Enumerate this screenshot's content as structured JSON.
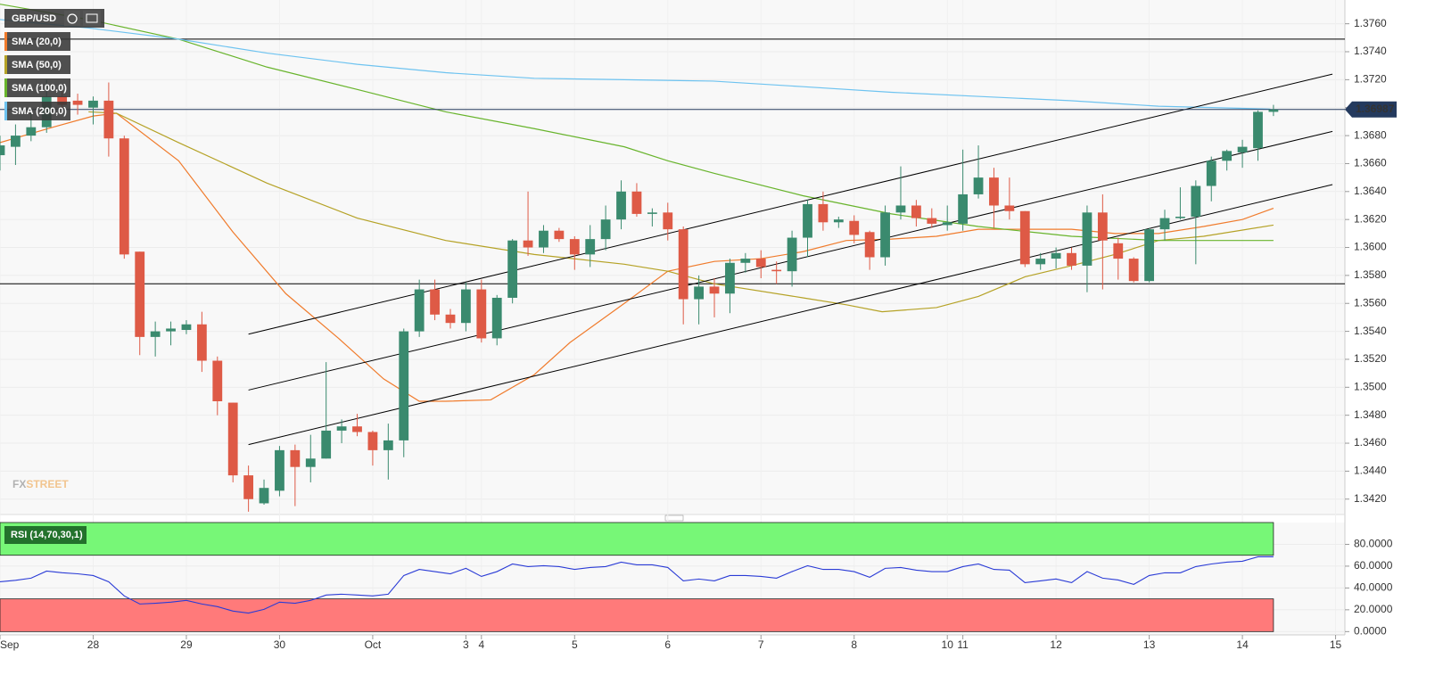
{
  "chart_data": [
    {
      "type": "candlestick",
      "series": [
        {
          "name": "GBP/USD",
          "up_color": "#3a8a6e",
          "down_color": "#de5a46",
          "x": [
            0,
            1,
            2,
            3,
            4,
            5,
            6,
            7,
            8,
            9,
            10,
            11,
            12,
            13,
            14,
            15,
            16,
            17,
            18,
            19,
            20,
            21,
            22,
            23,
            24,
            25,
            26,
            27,
            28,
            29,
            30,
            31,
            32,
            33,
            34,
            35,
            36,
            37,
            38,
            39,
            40,
            41,
            42,
            43,
            44,
            45,
            46,
            47,
            48,
            49,
            50,
            51,
            52,
            53,
            54,
            55,
            56,
            57,
            58,
            59,
            60,
            61,
            62,
            63,
            64,
            65,
            66,
            67,
            68,
            69,
            70,
            71,
            72,
            73,
            74,
            75,
            76,
            77,
            78,
            79,
            80,
            81,
            82
          ],
          "open": [
            1.3666,
            1.3672,
            1.368,
            1.3686,
            1.3708,
            1.3705,
            1.37,
            1.3705,
            1.3678,
            1.3597,
            1.3536,
            1.354,
            1.3541,
            1.3545,
            1.3519,
            1.3489,
            1.3437,
            1.3417,
            1.3426,
            1.3455,
            1.3443,
            1.3449,
            1.3469,
            1.3472,
            1.3468,
            1.3455,
            1.3462,
            1.354,
            1.357,
            1.3552,
            1.3546,
            1.357,
            1.3535,
            1.3564,
            1.3605,
            1.36,
            1.3612,
            1.3606,
            1.3595,
            1.3606,
            1.362,
            1.364,
            1.3624,
            1.3625,
            1.3613,
            1.3563,
            1.3572,
            1.3567,
            1.3589,
            1.3592,
            1.3584,
            1.3583,
            1.3607,
            1.3631,
            1.3618,
            1.3619,
            1.3611,
            1.3593,
            1.3625,
            1.363,
            1.3621,
            1.3616,
            1.3617,
            1.3638,
            1.365,
            1.363,
            1.3626,
            1.3588,
            1.3592,
            1.3596,
            1.3587,
            1.3625,
            1.3603,
            1.3592,
            1.3576,
            1.3613,
            1.3621,
            1.3622,
            1.3644,
            1.3662,
            1.3668,
            1.3671,
            1.3697
          ],
          "high": [
            1.368,
            1.3688,
            1.37,
            1.372,
            1.3712,
            1.371,
            1.3708,
            1.3718,
            1.368,
            1.3597,
            1.3547,
            1.3547,
            1.3548,
            1.3554,
            1.3522,
            1.3489,
            1.3444,
            1.3434,
            1.3458,
            1.3459,
            1.3466,
            1.3518,
            1.3477,
            1.3481,
            1.3469,
            1.3474,
            1.3542,
            1.3577,
            1.3577,
            1.3556,
            1.3575,
            1.3577,
            1.3566,
            1.3606,
            1.364,
            1.3616,
            1.3614,
            1.3608,
            1.3616,
            1.363,
            1.3648,
            1.3646,
            1.3628,
            1.3632,
            1.3615,
            1.358,
            1.3578,
            1.3592,
            1.3596,
            1.3598,
            1.359,
            1.3612,
            1.3634,
            1.364,
            1.3622,
            1.3623,
            1.3612,
            1.363,
            1.3658,
            1.3634,
            1.3628,
            1.363,
            1.367,
            1.3673,
            1.3657,
            1.365,
            1.3626,
            1.3596,
            1.36,
            1.36,
            1.363,
            1.3638,
            1.3607,
            1.3593,
            1.3614,
            1.3627,
            1.3643,
            1.3648,
            1.3665,
            1.367,
            1.3677,
            1.3698,
            1.3702
          ],
          "low": [
            1.3655,
            1.3659,
            1.3676,
            1.3682,
            1.3698,
            1.3695,
            1.3688,
            1.3665,
            1.3592,
            1.3523,
            1.3522,
            1.353,
            1.3538,
            1.3511,
            1.348,
            1.3432,
            1.3411,
            1.3416,
            1.3422,
            1.3415,
            1.3432,
            1.3449,
            1.346,
            1.3465,
            1.3444,
            1.3434,
            1.345,
            1.3536,
            1.3548,
            1.3542,
            1.354,
            1.3532,
            1.353,
            1.356,
            1.3594,
            1.3596,
            1.3604,
            1.3584,
            1.3586,
            1.3598,
            1.3613,
            1.3622,
            1.3615,
            1.3605,
            1.3545,
            1.3545,
            1.355,
            1.3553,
            1.3582,
            1.3578,
            1.3574,
            1.3572,
            1.3593,
            1.3612,
            1.3614,
            1.3603,
            1.3584,
            1.3587,
            1.362,
            1.3615,
            1.3614,
            1.3612,
            1.3612,
            1.3635,
            1.3614,
            1.362,
            1.3586,
            1.3584,
            1.3585,
            1.3584,
            1.3568,
            1.357,
            1.3577,
            1.3575,
            1.3575,
            1.3605,
            1.362,
            1.3588,
            1.3633,
            1.3655,
            1.3657,
            1.3662,
            1.3694
          ],
          "close": [
            1.3673,
            1.368,
            1.3686,
            1.3708,
            1.3702,
            1.3702,
            1.3705,
            1.3678,
            1.3595,
            1.3536,
            1.354,
            1.3542,
            1.3545,
            1.3519,
            1.349,
            1.3437,
            1.342,
            1.3428,
            1.3455,
            1.3443,
            1.3449,
            1.3469,
            1.3472,
            1.3468,
            1.3455,
            1.3462,
            1.354,
            1.357,
            1.3552,
            1.3546,
            1.357,
            1.3535,
            1.3564,
            1.3605,
            1.36,
            1.3612,
            1.3606,
            1.3595,
            1.3606,
            1.362,
            1.364,
            1.3624,
            1.3625,
            1.3613,
            1.3563,
            1.3572,
            1.3567,
            1.3589,
            1.3592,
            1.3586,
            1.3583,
            1.3607,
            1.3631,
            1.3618,
            1.362,
            1.3609,
            1.3593,
            1.3625,
            1.363,
            1.3621,
            1.3617,
            1.3618,
            1.3638,
            1.365,
            1.363,
            1.3626,
            1.3588,
            1.3592,
            1.3596,
            1.3587,
            1.3625,
            1.3605,
            1.3592,
            1.3576,
            1.3613,
            1.3621,
            1.3622,
            1.3644,
            1.3662,
            1.3669,
            1.3672,
            1.3697,
            1.36987
          ]
        }
      ],
      "overlays": [
        {
          "name": "SMA (20,0)",
          "color": "#f07b2c",
          "x": [
            0,
            3.4,
            6,
            7.5,
            11.5,
            15,
            18.4,
            21.8,
            24.7,
            27,
            28.7,
            31.6,
            34.4,
            36.7,
            40.2,
            43,
            46,
            49,
            51.7,
            54.5,
            57.4,
            60.3,
            63,
            66,
            69,
            71.8,
            74.6,
            77.5,
            80,
            82
          ],
          "values": [
            1.3675,
            1.3686,
            1.3694,
            1.3696,
            1.3662,
            1.3611,
            1.3567,
            1.3535,
            1.3506,
            1.349,
            1.349,
            1.3491,
            1.3509,
            1.3532,
            1.356,
            1.3583,
            1.359,
            1.3592,
            1.3597,
            1.3605,
            1.3606,
            1.3608,
            1.3613,
            1.3613,
            1.3613,
            1.361,
            1.361,
            1.3615,
            1.362,
            1.3628
          ]
        },
        {
          "name": "SMA (50,0)",
          "color": "#b5a226",
          "x": [
            5.7,
            7.5,
            11.5,
            17.2,
            23,
            28.7,
            34.4,
            40.2,
            43,
            46,
            51.7,
            54.5,
            56.8,
            60.3,
            63,
            66,
            69,
            71.8,
            74.6,
            77.5,
            82
          ],
          "values": [
            1.3697,
            1.3696,
            1.3675,
            1.3646,
            1.3621,
            1.3605,
            1.3595,
            1.3588,
            1.3583,
            1.3574,
            1.3564,
            1.3559,
            1.3554,
            1.3557,
            1.3565,
            1.3579,
            1.3587,
            1.3595,
            1.3605,
            1.3608,
            1.3616
          ]
        },
        {
          "name": "SMA (100,0)",
          "color": "#68b42c",
          "x": [
            0,
            5.7,
            11.5,
            17.2,
            23,
            28.7,
            34.4,
            40.2,
            43,
            46,
            51.7,
            57.4,
            63,
            69,
            74.6,
            82
          ],
          "values": [
            1.3774,
            1.3763,
            1.3749,
            1.3729,
            1.3713,
            1.3697,
            1.3685,
            1.3672,
            1.3662,
            1.3653,
            1.3637,
            1.3624,
            1.3615,
            1.3608,
            1.3605,
            1.3605
          ]
        },
        {
          "name": "SMA (200,0)",
          "color": "#6ec3f0",
          "x": [
            0,
            5.7,
            11.5,
            17.2,
            23,
            28.7,
            34.4,
            40.2,
            45.9,
            51.7,
            57.4,
            63.1,
            68.9,
            74.6,
            81.8
          ],
          "values": [
            1.3763,
            1.3757,
            1.3749,
            1.3739,
            1.3731,
            1.3725,
            1.3721,
            1.372,
            1.3719,
            1.3715,
            1.3711,
            1.3708,
            1.3705,
            1.3701,
            1.3699
          ]
        }
      ],
      "channel": [
        {
          "x": [
            16,
            85.8
          ],
          "values": [
            1.3538,
            1.3724
          ]
        },
        {
          "x": [
            16,
            85.8
          ],
          "values": [
            1.3498,
            1.3683
          ]
        },
        {
          "x": [
            16,
            85.8
          ],
          "values": [
            1.3459,
            1.3645
          ]
        }
      ],
      "hlines": [
        1.3749,
        1.3574
      ],
      "last_price": {
        "value": 1.36987,
        "label": "1.36987"
      },
      "xlim": [
        0,
        86.6
      ],
      "ylim": [
        1.3409,
        1.3777
      ],
      "xticks": [
        {
          "value": 0,
          "label": "Sep"
        },
        {
          "value": 6,
          "label": "28"
        },
        {
          "value": 12,
          "label": "29"
        },
        {
          "value": 18,
          "label": "30"
        },
        {
          "value": 24,
          "label": "Oct"
        },
        {
          "value": 30,
          "label": "3"
        },
        {
          "value": 31,
          "label": "4"
        },
        {
          "value": 37,
          "label": "5"
        },
        {
          "value": 43,
          "label": "6"
        },
        {
          "value": 49,
          "label": "7"
        },
        {
          "value": 55,
          "label": "8"
        },
        {
          "value": 61,
          "label": "10"
        },
        {
          "value": 62,
          "label": "11"
        },
        {
          "value": 68,
          "label": "12"
        },
        {
          "value": 74,
          "label": "13"
        },
        {
          "value": 80,
          "label": "14"
        },
        {
          "value": 86,
          "label": "15"
        }
      ],
      "yticks": [
        {
          "value": 1.342,
          "label": "1.3420"
        },
        {
          "value": 1.344,
          "label": "1.3440"
        },
        {
          "value": 1.346,
          "label": "1.3460"
        },
        {
          "value": 1.348,
          "label": "1.3480"
        },
        {
          "value": 1.35,
          "label": "1.3500"
        },
        {
          "value": 1.352,
          "label": "1.3520"
        },
        {
          "value": 1.354,
          "label": "1.3540"
        },
        {
          "value": 1.356,
          "label": "1.3560"
        },
        {
          "value": 1.358,
          "label": "1.3580"
        },
        {
          "value": 1.36,
          "label": "1.3600"
        },
        {
          "value": 1.362,
          "label": "1.3620"
        },
        {
          "value": 1.364,
          "label": "1.3640"
        },
        {
          "value": 1.366,
          "label": "1.3660"
        },
        {
          "value": 1.368,
          "label": "1.3680"
        },
        {
          "value": 1.37,
          "label": "1.3700"
        },
        {
          "value": 1.372,
          "label": "1.3720"
        },
        {
          "value": 1.374,
          "label": "1.3740"
        },
        {
          "value": 1.376,
          "label": "1.3760"
        }
      ],
      "watermark": {
        "part1": "FX",
        "part2": "STREET"
      }
    },
    {
      "type": "line",
      "series": [
        {
          "name": "RSI (14,70,30,1)",
          "color": "#2a3bd6",
          "x": [
            0,
            1,
            2,
            3,
            4,
            5,
            6,
            7,
            8,
            9,
            10,
            11,
            12,
            13,
            14,
            15,
            16,
            17,
            18,
            19,
            20,
            21,
            22,
            23,
            24,
            25,
            26,
            27,
            28,
            29,
            30,
            31,
            32,
            33,
            34,
            35,
            36,
            37,
            38,
            39,
            40,
            41,
            42,
            43,
            44,
            45,
            46,
            47,
            48,
            49,
            50,
            51,
            52,
            53,
            54,
            55,
            56,
            57,
            58,
            59,
            60,
            61,
            62,
            63,
            64,
            65,
            66,
            67,
            68,
            69,
            70,
            71,
            72,
            73,
            74,
            75,
            76,
            77,
            78,
            79,
            80,
            81,
            82
          ],
          "values": [
            45.7,
            47,
            49,
            55.5,
            54,
            53,
            51.4,
            45.7,
            32.7,
            25.3,
            26,
            27,
            28.6,
            25.3,
            22.9,
            18.8,
            17,
            20.4,
            27,
            26,
            28.6,
            33.5,
            34.3,
            33.5,
            32.7,
            34.3,
            51.4,
            57,
            55,
            53,
            58,
            50.6,
            55,
            62,
            59.6,
            60.4,
            59.6,
            57,
            58.8,
            59.6,
            63.7,
            61.2,
            61.2,
            58.8,
            46.5,
            48.2,
            46.5,
            51.4,
            51.4,
            50.6,
            49,
            55,
            60.4,
            57,
            57,
            55,
            49.8,
            58,
            58.8,
            56.3,
            55,
            55,
            59.6,
            62,
            57,
            56.3,
            44.9,
            46.5,
            48.2,
            44.9,
            55,
            49,
            47.3,
            43.3,
            51.4,
            53.9,
            53.9,
            59.6,
            62,
            63.7,
            64.5,
            68.6,
            68.6
          ]
        }
      ],
      "bands": [
        {
          "from": 70,
          "to": 100,
          "color": "#77f777"
        },
        {
          "from": 0,
          "to": 30,
          "color": "#ff7a7a"
        }
      ],
      "xlim": [
        0,
        86.6
      ],
      "ylim": [
        -3,
        100
      ],
      "yticks": [
        {
          "value": 0,
          "label": "0.0000"
        },
        {
          "value": 20,
          "label": "20.0000"
        },
        {
          "value": 40,
          "label": "40.0000"
        },
        {
          "value": 60,
          "label": "60.0000"
        },
        {
          "value": 80,
          "label": "80.0000"
        }
      ]
    }
  ]
}
